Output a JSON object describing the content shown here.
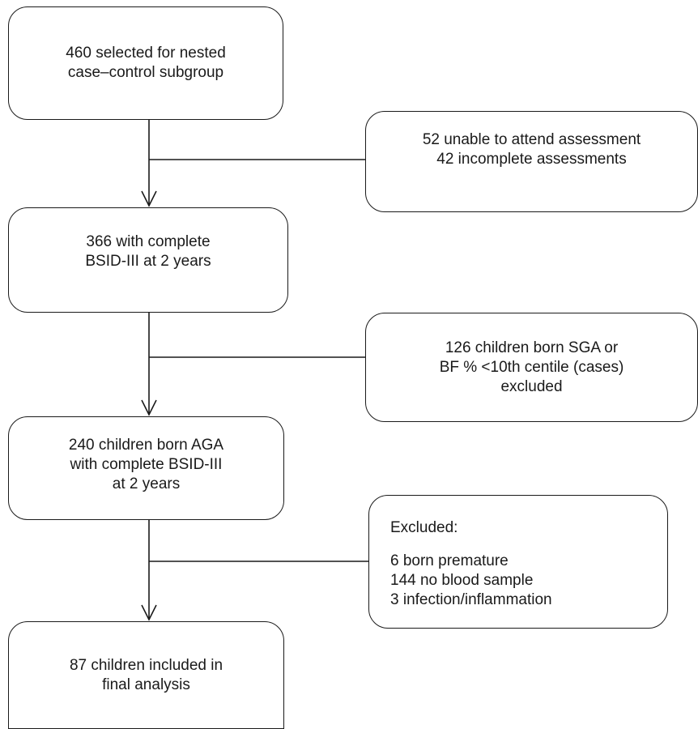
{
  "flowchart": {
    "selected": {
      "lines": [
        "460 selected for nested",
        "case–control subgroup"
      ]
    },
    "excluded_1": {
      "lines": [
        "52 unable to attend assessment",
        "42 incomplete assessments"
      ]
    },
    "complete": {
      "lines": [
        "366 with complete",
        "BSID-III at 2 years"
      ]
    },
    "excluded_2": {
      "lines": [
        "126 children born SGA or",
        "BF % <10th centile (cases)",
        "excluded"
      ]
    },
    "aga": {
      "lines": [
        "240 children born AGA",
        "with complete BSID-III",
        "at 2 years"
      ]
    },
    "excluded_3": {
      "heading": "Excluded:",
      "lines": [
        "6 born premature",
        "144 no blood sample",
        "3 infection/inflammation"
      ]
    },
    "final": {
      "lines": [
        "87 children included in",
        "final analysis"
      ]
    }
  }
}
